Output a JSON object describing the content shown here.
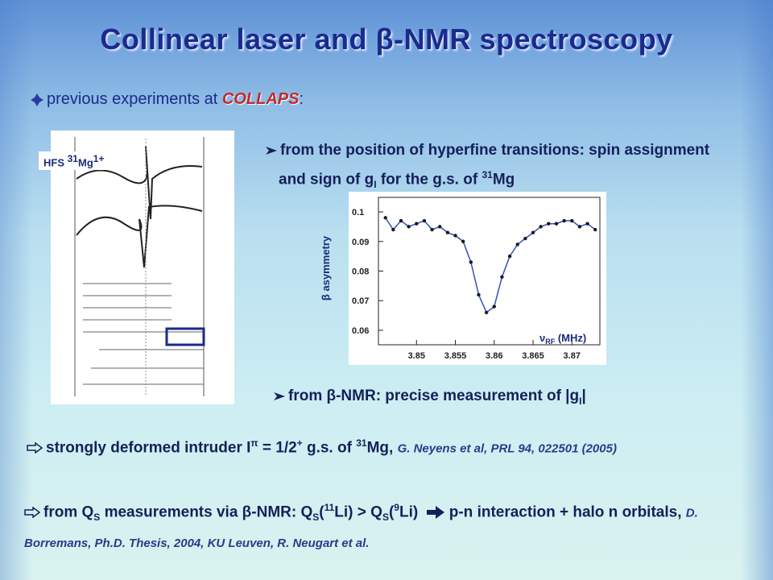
{
  "title": "Collinear laser and β-NMR spectroscopy",
  "intro": {
    "parts": [
      "previous experiments at ",
      "COLLAPS",
      ":"
    ]
  },
  "figure_label": {
    "parts": [
      "HFS ",
      "31",
      "Mg",
      "1+"
    ]
  },
  "point1": {
    "parts": [
      "from the position of hyperfine transitions: spin assignment and sign of g",
      "I",
      " for the g.s. of ",
      "31",
      "Mg"
    ]
  },
  "plot": {
    "ylabel": "β asymmetry",
    "xlabel": {
      "parts": [
        "ν",
        "RF",
        " (MHz)"
      ]
    },
    "x": [
      3.846,
      3.847,
      3.848,
      3.849,
      3.85,
      3.851,
      3.852,
      3.853,
      3.854,
      3.855,
      3.856,
      3.857,
      3.858,
      3.859,
      3.86,
      3.861,
      3.862,
      3.863,
      3.864,
      3.865,
      3.866,
      3.867,
      3.868,
      3.869,
      3.87,
      3.871,
      3.872,
      3.873
    ],
    "values": [
      0.098,
      0.094,
      0.097,
      0.095,
      0.096,
      0.097,
      0.094,
      0.095,
      0.093,
      0.092,
      0.09,
      0.083,
      0.072,
      0.066,
      0.068,
      0.078,
      0.085,
      0.089,
      0.091,
      0.093,
      0.095,
      0.096,
      0.096,
      0.097,
      0.097,
      0.095,
      0.096,
      0.094
    ],
    "color": "#1a1a1a",
    "xlim": [
      3.8451,
      3.8736
    ],
    "ylim": [
      0.0551,
      0.1049
    ],
    "xticks": [
      3.85,
      3.855,
      3.86,
      3.865,
      3.87
    ],
    "yticks": [
      0.06,
      0.07,
      0.08,
      0.09,
      0.1
    ]
  },
  "point2": {
    "parts": [
      "from β-NMR: precise measurement of |g",
      "I",
      "|"
    ]
  },
  "conclusion1": {
    "parts": [
      "strongly deformed intruder I",
      "π",
      " = 1/2",
      "+",
      " g.s. of ",
      "31",
      "Mg, ",
      "G. Neyens et al, PRL 94, 022501 (2005)"
    ]
  },
  "conclusion2": {
    "parts": [
      "from Q",
      "S",
      " measurements via β-NMR: Q",
      "S",
      "(",
      "11",
      "Li) > Q",
      "S",
      "(",
      "9",
      "Li)",
      " p-n interaction + halo n orbitals, ",
      "D. Borremans, Ph.D. Thesis, 2004, KU Leuven, R. Neugart et al."
    ]
  }
}
